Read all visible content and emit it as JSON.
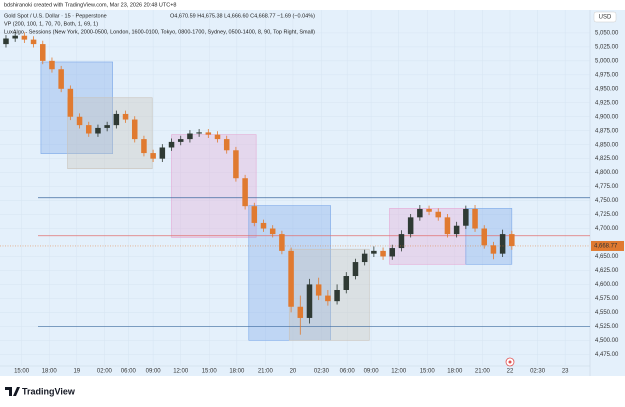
{
  "chart_data": {
    "type": "candlestick",
    "credit": "bdshiranoki created with TradingView.com, Mar 23, 2026 20:48 UTC+8",
    "title": "Gold Spot / U.S. Dollar · 15 · Pepperstone",
    "ohlc_text": "O4,670.59 H4,675.38 L4,666.60 C4,668.77 −1.69 (−0.04%)",
    "indicator_1": "VP (200, 100, 1, 70, 70, Both, 1, 69, 1)",
    "indicator_2": "LuxAlgo - Sessions (New York, 2000-0500, London, 1600-0100, Tokyo, 0800-1700, Sydney, 0500-1400, 8, 90, Top Right, Small)",
    "currency": "USD",
    "brand": "TradingView",
    "up_color": "#2f3a34",
    "down_color": "#e07a30",
    "open": [
      5030,
      5040,
      5045,
      5038,
      5030,
      5000,
      4985,
      4950,
      4900,
      4885,
      4870,
      4880,
      4885,
      4905,
      4895,
      4860,
      4835,
      4825,
      4845,
      4855,
      4860,
      4870,
      4872,
      4868,
      4860,
      4840,
      4790,
      4740,
      4710,
      4700,
      4690,
      4660,
      4560,
      4540,
      4600,
      4580,
      4570,
      4590,
      4615,
      4640,
      4655,
      4660,
      4650,
      4665,
      4690,
      4720,
      4735,
      4730,
      4720,
      4690,
      4705,
      4735,
      4700,
      4670,
      4655,
      4690
    ],
    "high": [
      5046,
      5051,
      5051,
      5044,
      5036,
      5006,
      4991,
      4956,
      4906,
      4891,
      4886,
      4891,
      4911,
      4911,
      4901,
      4866,
      4841,
      4851,
      4861,
      4866,
      4876,
      4878,
      4878,
      4874,
      4866,
      4846,
      4796,
      4746,
      4716,
      4706,
      4696,
      4666,
      4580,
      4610,
      4612,
      4590,
      4600,
      4622,
      4646,
      4662,
      4668,
      4666,
      4671,
      4697,
      4726,
      4742,
      4741,
      4736,
      4726,
      4712,
      4741,
      4742,
      4706,
      4676,
      4698,
      4696
    ],
    "low": [
      5024,
      5034,
      5032,
      5024,
      4994,
      4979,
      4944,
      4894,
      4879,
      4864,
      4864,
      4874,
      4879,
      4889,
      4854,
      4829,
      4819,
      4819,
      4839,
      4849,
      4854,
      4864,
      4862,
      4854,
      4834,
      4784,
      4734,
      4704,
      4694,
      4684,
      4654,
      4550,
      4510,
      4530,
      4572,
      4562,
      4564,
      4584,
      4609,
      4634,
      4649,
      4644,
      4644,
      4659,
      4684,
      4714,
      4724,
      4714,
      4684,
      4684,
      4699,
      4694,
      4664,
      4645,
      4649,
      4662
    ],
    "close": [
      5040,
      5045,
      5038,
      5030,
      5000,
      4985,
      4950,
      4900,
      4885,
      4870,
      4880,
      4885,
      4905,
      4895,
      4860,
      4835,
      4825,
      4845,
      4855,
      4860,
      4870,
      4872,
      4868,
      4860,
      4840,
      4790,
      4740,
      4710,
      4700,
      4690,
      4660,
      4560,
      4540,
      4600,
      4580,
      4570,
      4590,
      4615,
      4640,
      4655,
      4660,
      4650,
      4665,
      4690,
      4720,
      4735,
      4730,
      4720,
      4690,
      4705,
      4735,
      4700,
      4670,
      4655,
      4690,
      4668.77
    ],
    "last_price": {
      "value": 4668.77,
      "label": "4,668.77"
    },
    "sessions": [
      {
        "x0": 3.8,
        "x1": 11.6,
        "top": 4998,
        "bottom": 4834,
        "color": "#7aa7e8"
      },
      {
        "x0": 6.7,
        "x1": 15.9,
        "top": 4934,
        "bottom": 4807,
        "color": "#c9c2b8"
      },
      {
        "x0": 18,
        "x1": 27.2,
        "top": 4868,
        "bottom": 4684,
        "color": "#e6a8d4"
      },
      {
        "x0": 26.4,
        "x1": 35.3,
        "top": 4741,
        "bottom": 4500,
        "color": "#7aa7e8"
      },
      {
        "x0": 30.8,
        "x1": 39.5,
        "top": 4663,
        "bottom": 4500,
        "color": "#c9c2b8"
      },
      {
        "x0": 41.7,
        "x1": 50,
        "top": 4736,
        "bottom": 4636,
        "color": "#e6a8d4"
      },
      {
        "x0": 50,
        "x1": 55,
        "top": 4736,
        "bottom": 4636,
        "color": "#7aa7e8"
      }
    ],
    "levels": [
      {
        "value": 4755,
        "color": "#3d6a9e"
      },
      {
        "value": 4687,
        "color": "#e07070"
      },
      {
        "value": 4525,
        "color": "#3d6a9e"
      }
    ],
    "xlim": [
      -0.65,
      63.5
    ],
    "ylim": [
      4454,
      5091
    ],
    "xticks": [
      {
        "value": 1.7,
        "label": "15:00"
      },
      {
        "value": 4.7,
        "label": "18:00"
      },
      {
        "value": 7.7,
        "label": "19"
      },
      {
        "value": 10.7,
        "label": "02:00"
      },
      {
        "value": 13.3,
        "label": "06:00"
      },
      {
        "value": 16,
        "label": "09:00"
      },
      {
        "value": 19,
        "label": "12:00"
      },
      {
        "value": 22.1,
        "label": "15:00"
      },
      {
        "value": 25.1,
        "label": "18:00"
      },
      {
        "value": 28.2,
        "label": "21:00"
      },
      {
        "value": 31.2,
        "label": "20"
      },
      {
        "value": 34.3,
        "label": "02:30"
      },
      {
        "value": 37.1,
        "label": "06:00"
      },
      {
        "value": 39.7,
        "label": "09:00"
      },
      {
        "value": 42.7,
        "label": "12:00"
      },
      {
        "value": 45.8,
        "label": "15:00"
      },
      {
        "value": 48.8,
        "label": "18:00"
      },
      {
        "value": 51.8,
        "label": "21:00"
      },
      {
        "value": 54.8,
        "label": "22"
      },
      {
        "value": 57.8,
        "label": "02:30"
      },
      {
        "value": 60.8,
        "label": "23"
      }
    ],
    "yticks": [
      {
        "value": 4475,
        "label": "4,475.00"
      },
      {
        "value": 4500,
        "label": "4,500.00"
      },
      {
        "value": 4525,
        "label": "4,525.00"
      },
      {
        "value": 4550,
        "label": "4,550.00"
      },
      {
        "value": 4575,
        "label": "4,575.00"
      },
      {
        "value": 4600,
        "label": "4,600.00"
      },
      {
        "value": 4625,
        "label": "4,625.00"
      },
      {
        "value": 4650,
        "label": "4,650.00"
      },
      {
        "value": 4700,
        "label": "4,700.00"
      },
      {
        "value": 4725,
        "label": "4,725.00"
      },
      {
        "value": 4750,
        "label": "4,750.00"
      },
      {
        "value": 4775,
        "label": "4,775.00"
      },
      {
        "value": 4800,
        "label": "4,800.00"
      },
      {
        "value": 4825,
        "label": "4,825.00"
      },
      {
        "value": 4850,
        "label": "4,850.00"
      },
      {
        "value": 4875,
        "label": "4,875.00"
      },
      {
        "value": 4900,
        "label": "4,900.00"
      },
      {
        "value": 4925,
        "label": "4,925.00"
      },
      {
        "value": 4950,
        "label": "4,950.00"
      },
      {
        "value": 4975,
        "label": "4,975.00"
      },
      {
        "value": 5000,
        "label": "5,000.00"
      },
      {
        "value": 5025,
        "label": "5,025.00"
      },
      {
        "value": 5050,
        "label": "5,050.00"
      }
    ],
    "grid": true
  }
}
